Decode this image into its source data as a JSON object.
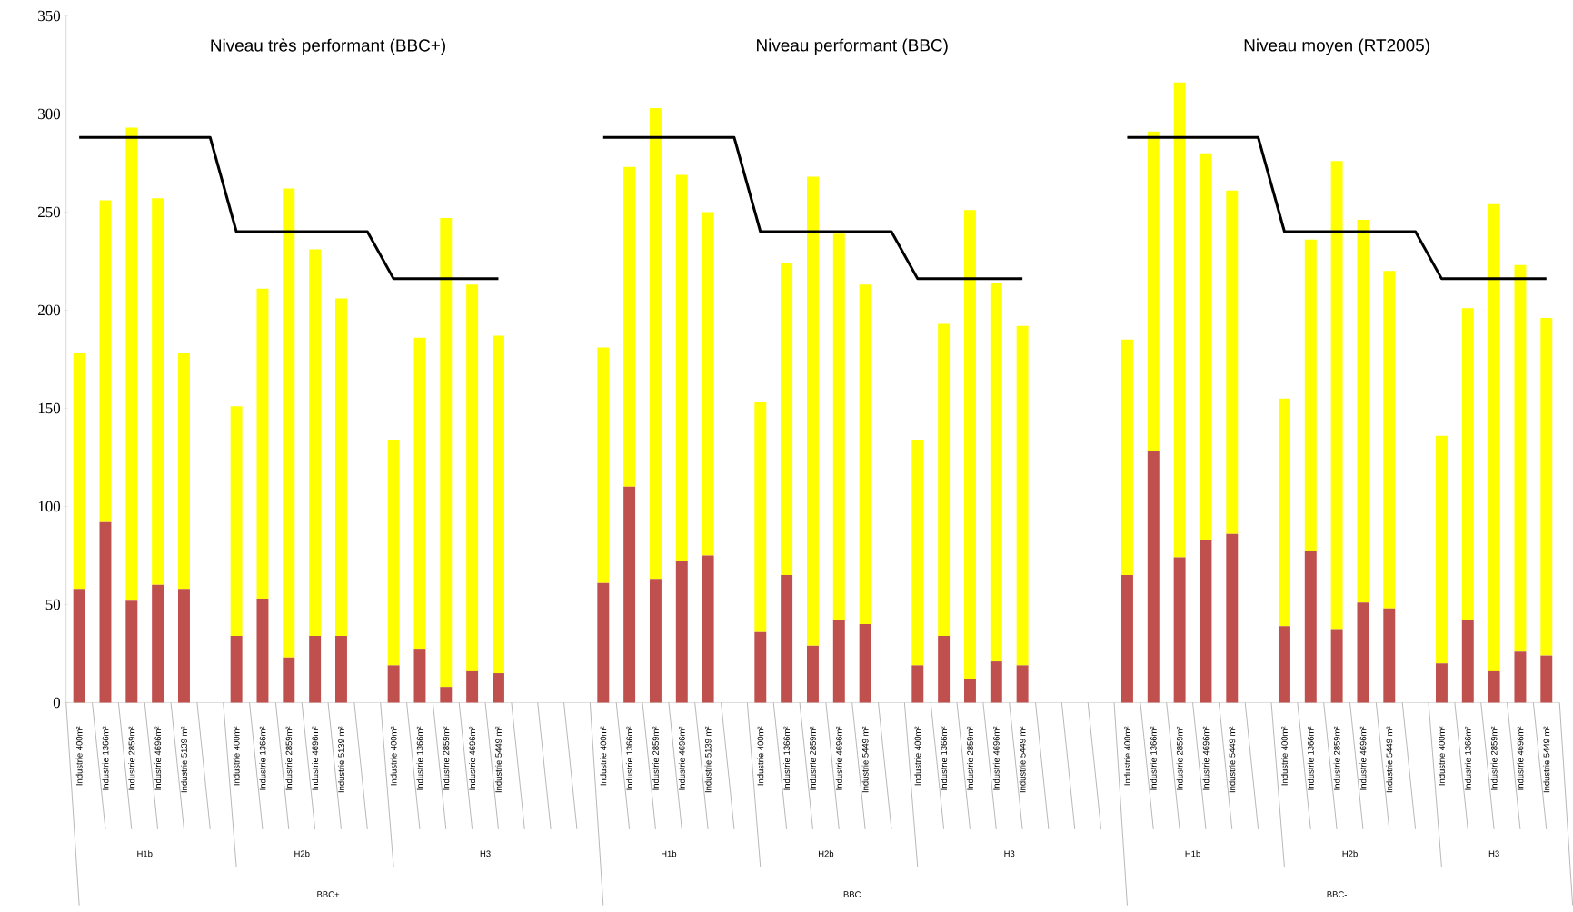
{
  "chart_data": {
    "type": "bar",
    "stacked": true,
    "categories": [
      "Industrie 400m²",
      "Industrie 1366m²",
      "Industrie 2859m²",
      "Industrie 4696m²",
      "Industrie 5139 m²",
      null,
      "Industrie 400m²",
      "Industrie 1366m²",
      "Industrie 2859m²",
      "Industrie 4696m²",
      "Industrie 5139 m²",
      null,
      "Industrie 400m²",
      "Industrie 1366m²",
      "Industrie 2859m²",
      "Industrie 4696m²",
      "Industrie 5449 m²",
      null,
      null,
      null,
      "Industrie 400m²",
      "Industrie 1366m²",
      "Industrie 2859m²",
      "Industrie 4696m²",
      "Industrie 5139 m²",
      null,
      "Industrie 400m²",
      "Industrie 1366m²",
      "Industrie 2859m²",
      "Industrie 4696m²",
      "Industrie 5449 m²",
      null,
      "Industrie 400m²",
      "Industrie 1366m²",
      "Industrie 2859m²",
      "Industrie 4696m²",
      "Industrie 5449 m²",
      null,
      null,
      null,
      "Industrie 400m²",
      "Industrie 1366m²",
      "Industrie 2859m²",
      "Industrie 4696m²",
      "Industrie 5449 m²",
      null,
      "Industrie 400m²",
      "Industrie 1366m²",
      "Industrie 2859m²",
      "Industrie 4696m²",
      "Industrie 5449 m²",
      null,
      "Industrie 400m²",
      "Industrie 1366m²",
      "Industrie 2859m²",
      "Industrie 4696m²",
      "Industrie 5449 m²"
    ],
    "series": [
      {
        "color": "#c0504d",
        "values": [
          58,
          92,
          52,
          60,
          58,
          null,
          34,
          53,
          23,
          34,
          34,
          null,
          19,
          27,
          8,
          16,
          15,
          null,
          null,
          null,
          61,
          110,
          63,
          72,
          75,
          null,
          36,
          65,
          29,
          42,
          40,
          null,
          19,
          34,
          12,
          21,
          19,
          null,
          null,
          null,
          65,
          128,
          74,
          83,
          86,
          null,
          39,
          77,
          37,
          51,
          48,
          null,
          20,
          42,
          16,
          26,
          24
        ]
      },
      {
        "color": "#ffff00",
        "values": [
          120,
          164,
          241,
          197,
          120,
          null,
          117,
          158,
          239,
          197,
          172,
          null,
          115,
          159,
          239,
          197,
          172,
          null,
          null,
          null,
          120,
          163,
          240,
          197,
          175,
          null,
          117,
          159,
          239,
          197,
          173,
          null,
          115,
          159,
          239,
          193,
          173,
          null,
          null,
          null,
          120,
          163,
          242,
          197,
          175,
          null,
          116,
          159,
          239,
          195,
          172,
          null,
          116,
          159,
          238,
          197,
          172
        ]
      },
      {
        "type": "line",
        "color": "#000000",
        "values": [
          288,
          288,
          288,
          288,
          288,
          288,
          240,
          240,
          240,
          240,
          240,
          240,
          216,
          216,
          216,
          216,
          216,
          null,
          null,
          null,
          288,
          288,
          288,
          288,
          288,
          288,
          240,
          240,
          240,
          240,
          240,
          240,
          216,
          216,
          216,
          216,
          216,
          null,
          null,
          null,
          288,
          288,
          288,
          288,
          288,
          288,
          240,
          240,
          240,
          240,
          240,
          240,
          216,
          216,
          216,
          216,
          216
        ]
      }
    ],
    "ylim": [
      0,
      350
    ],
    "yticks": [
      0,
      50,
      100,
      150,
      200,
      250,
      300,
      350
    ],
    "annotations": [
      "Niveau très performant (BBC+)",
      "Niveau performant (BBC)",
      "Niveau moyen (RT2005)",
      "H1b",
      "H2b",
      "H3",
      "H1b",
      "H2b",
      "H3",
      "H1b",
      "H2b",
      "H3",
      "BBC+",
      "BBC",
      "BBC-"
    ]
  }
}
